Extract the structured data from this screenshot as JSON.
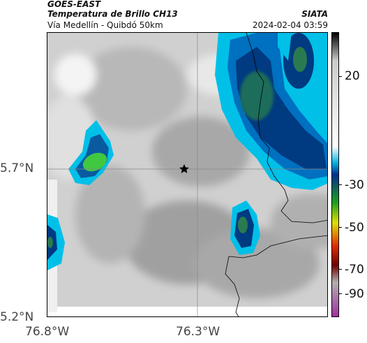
{
  "header": {
    "satellite": "GOES-EAST",
    "product": "Temperatura de Brillo CH13",
    "region": "Vía Medellín - Quibdó 50km",
    "organization": "SIATA",
    "timestamp": "2024-02-04 03:59"
  },
  "axes": {
    "lat_ticks": [
      "5.7°N",
      "5.2°N"
    ],
    "lon_ticks": [
      "76.8°W",
      "76.3°W"
    ]
  },
  "colorbar": {
    "ticks": [
      "20",
      "-30",
      "-50",
      "-70",
      "-90"
    ],
    "colors": [
      "#000000",
      "#cccccc",
      "#ffffff",
      "#00b0e0",
      "#003090",
      "#20a020",
      "#e0e000",
      "#e03000",
      "#700000",
      "#b0b0b0",
      "#a030a0"
    ]
  },
  "map": {
    "marker": "star-icon",
    "colors": {
      "cloud_warm": "#c8c8c8",
      "cloud_cold_edge": "#00c0e8",
      "cloud_deep": "#003a80",
      "cloud_core": "#2a7a50",
      "cloud_coldest": "#60e040"
    }
  }
}
